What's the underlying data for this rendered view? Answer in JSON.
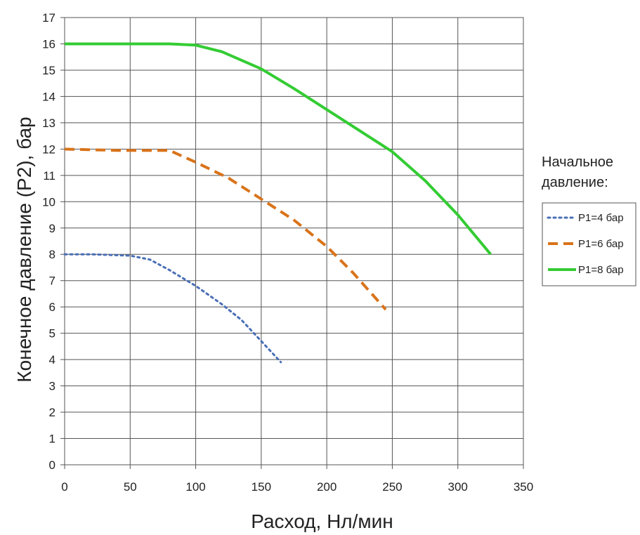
{
  "chart_data": {
    "type": "line",
    "xlabel": "Расход, Нл/мин",
    "ylabel": "Конечное давление (P2), бар",
    "xlim": [
      0,
      350
    ],
    "ylim": [
      0,
      17
    ],
    "xticks": [
      0,
      50,
      100,
      150,
      200,
      250,
      300,
      350
    ],
    "yticks": [
      0,
      1,
      2,
      3,
      4,
      5,
      6,
      7,
      8,
      9,
      10,
      11,
      12,
      13,
      14,
      15,
      16,
      17
    ],
    "grid": true,
    "legend_position": "right",
    "legend_title_line1": "Начальное",
    "legend_title_line2": "давление:",
    "series": [
      {
        "name": "P1=4 бар",
        "color": "#4a6fb5",
        "style": "dotted",
        "points": [
          [
            0,
            8
          ],
          [
            20,
            8
          ],
          [
            50,
            7.95
          ],
          [
            65,
            7.8
          ],
          [
            80,
            7.4
          ],
          [
            100,
            6.8
          ],
          [
            120,
            6.1
          ],
          [
            135,
            5.5
          ],
          [
            150,
            4.7
          ],
          [
            165,
            3.9
          ]
        ]
      },
      {
        "name": "P1=6 бар",
        "color": "#d9731a",
        "style": "dashed",
        "points": [
          [
            0,
            12
          ],
          [
            40,
            11.95
          ],
          [
            80,
            11.95
          ],
          [
            100,
            11.5
          ],
          [
            125,
            10.9
          ],
          [
            150,
            10.1
          ],
          [
            175,
            9.3
          ],
          [
            200,
            8.3
          ],
          [
            220,
            7.3
          ],
          [
            245,
            5.9
          ]
        ]
      },
      {
        "name": "P1=8 бар",
        "color": "#33cc33",
        "style": "solid",
        "points": [
          [
            0,
            16
          ],
          [
            50,
            16
          ],
          [
            80,
            16
          ],
          [
            100,
            15.95
          ],
          [
            120,
            15.7
          ],
          [
            150,
            15.05
          ],
          [
            175,
            14.3
          ],
          [
            200,
            13.5
          ],
          [
            225,
            12.7
          ],
          [
            250,
            11.9
          ],
          [
            275,
            10.8
          ],
          [
            300,
            9.5
          ],
          [
            325,
            8.0
          ]
        ]
      }
    ]
  }
}
